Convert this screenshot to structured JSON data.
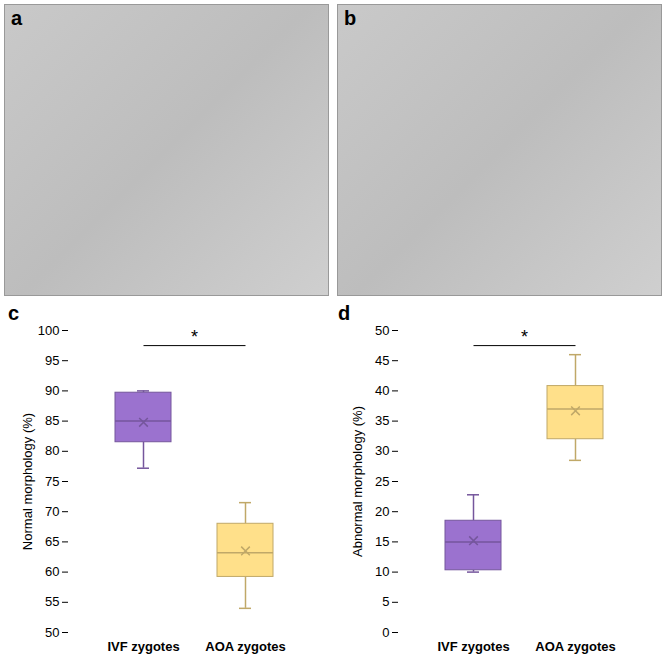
{
  "panels": [
    {
      "label": "a",
      "type": "image"
    },
    {
      "label": "b",
      "type": "image"
    }
  ],
  "chart_data": [
    {
      "type": "box",
      "label": "c",
      "ylabel": "Normal morphology (%)",
      "categories": [
        "IVF zygotes",
        "AOA zygotes"
      ],
      "colors": [
        "#9b72cf",
        "#ffe08a"
      ],
      "min": [
        77.2,
        54.0
      ],
      "q1": [
        81.5,
        59.2
      ],
      "median": [
        85.0,
        63.2
      ],
      "q3": [
        89.7,
        68.0
      ],
      "max": [
        90.0,
        71.5
      ],
      "mean": [
        84.8,
        63.5
      ],
      "marker": "x",
      "ylim": [
        50,
        100
      ],
      "yticks": [
        50,
        55,
        60,
        65,
        70,
        75,
        80,
        85,
        90,
        95,
        100
      ],
      "grid": false,
      "annotations": [
        {
          "text": "*",
          "between": [
            "IVF zygotes",
            "AOA zygotes"
          ]
        }
      ]
    },
    {
      "type": "box",
      "label": "d",
      "ylabel": "Abnormal morphology (%)",
      "categories": [
        "IVF zygotes",
        "AOA zygotes"
      ],
      "colors": [
        "#9b72cf",
        "#ffe08a"
      ],
      "min": [
        10.0,
        28.5
      ],
      "q1": [
        10.3,
        32.0
      ],
      "median": [
        15.0,
        37.0
      ],
      "q3": [
        18.5,
        40.8
      ],
      "max": [
        22.8,
        46.0
      ],
      "mean": [
        15.2,
        36.7
      ],
      "marker": "x",
      "ylim": [
        0,
        50
      ],
      "yticks": [
        0,
        5,
        10,
        15,
        20,
        25,
        30,
        35,
        40,
        45,
        50
      ],
      "grid": false,
      "annotations": [
        {
          "text": "*",
          "between": [
            "IVF zygotes",
            "AOA zygotes"
          ]
        }
      ]
    }
  ]
}
